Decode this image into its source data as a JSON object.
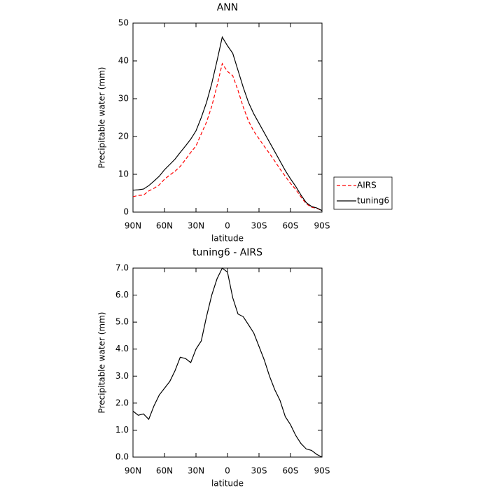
{
  "chart_data": [
    {
      "type": "line",
      "title": "ANN",
      "xlabel": "latitude",
      "ylabel": "Precipitable water (mm)",
      "x": [
        90,
        85,
        80,
        75,
        70,
        65,
        60,
        55,
        50,
        45,
        40,
        35,
        30,
        25,
        20,
        15,
        10,
        5,
        0,
        -5,
        -10,
        -15,
        -20,
        -25,
        -30,
        -35,
        -40,
        -45,
        -50,
        -55,
        -60,
        -65,
        -70,
        -75,
        -80,
        -85,
        -90
      ],
      "series": [
        {
          "name": "AIRS",
          "color": "#ff0000",
          "linestyle": "dashed",
          "values": [
            4.1,
            4.4,
            4.5,
            5.6,
            6.3,
            7.2,
            8.7,
            9.8,
            10.8,
            12.1,
            13.9,
            15.8,
            17.5,
            20.7,
            23.8,
            28.0,
            33.4,
            39.3,
            37.2,
            36.1,
            32.2,
            27.8,
            24.1,
            21.4,
            19.4,
            17.4,
            15.5,
            13.5,
            11.4,
            9.5,
            7.6,
            6.0,
            4.0,
            2.2,
            1.3,
            1.0,
            0.4
          ]
        },
        {
          "name": "tuning6",
          "color": "#000000",
          "linestyle": "solid",
          "values": [
            5.8,
            5.9,
            6.1,
            7.0,
            8.2,
            9.5,
            11.2,
            12.6,
            14.0,
            15.8,
            17.5,
            19.3,
            21.5,
            25.0,
            29.0,
            34.0,
            40.0,
            46.3,
            44.0,
            42.0,
            37.5,
            33.0,
            29.0,
            26.0,
            23.5,
            21.0,
            18.5,
            16.0,
            13.5,
            11.0,
            8.8,
            6.8,
            4.5,
            2.5,
            1.5,
            1.1,
            0.4
          ]
        }
      ],
      "xlim": [
        90,
        -90
      ],
      "xticks": [
        {
          "value": 90,
          "label": "90N"
        },
        {
          "value": 60,
          "label": "60N"
        },
        {
          "value": 30,
          "label": "30N"
        },
        0,
        {
          "value": -30,
          "label": "30S"
        },
        {
          "value": -60,
          "label": "60S"
        },
        {
          "value": -90,
          "label": "90S"
        }
      ],
      "ylim": [
        0,
        50
      ],
      "yticks": [
        0,
        10,
        20,
        30,
        40,
        50
      ],
      "legend": "right"
    },
    {
      "type": "line",
      "title": "tuning6 - AIRS",
      "xlabel": "latitude",
      "ylabel": "Precipitable water (mm)",
      "x": [
        90,
        85,
        80,
        75,
        70,
        65,
        60,
        55,
        50,
        45,
        40,
        35,
        30,
        25,
        20,
        15,
        10,
        5,
        0,
        -5,
        -10,
        -15,
        -20,
        -25,
        -30,
        -35,
        -40,
        -45,
        -50,
        -55,
        -60,
        -65,
        -70,
        -75,
        -80,
        -85,
        -90
      ],
      "color": "#000000",
      "values": [
        1.7,
        1.55,
        1.6,
        1.4,
        1.9,
        2.3,
        2.55,
        2.8,
        3.2,
        3.7,
        3.65,
        3.5,
        4.0,
        4.3,
        5.2,
        6.0,
        6.6,
        7.0,
        6.85,
        5.9,
        5.3,
        5.2,
        4.9,
        4.6,
        4.1,
        3.6,
        3.0,
        2.5,
        2.1,
        1.5,
        1.2,
        0.8,
        0.5,
        0.3,
        0.25,
        0.1,
        0.0
      ],
      "xlim": [
        90,
        -90
      ],
      "xticks": [
        {
          "value": 90,
          "label": "90N"
        },
        {
          "value": 60,
          "label": "60N"
        },
        {
          "value": 30,
          "label": "30N"
        },
        0,
        {
          "value": -30,
          "label": "30S"
        },
        {
          "value": -60,
          "label": "60S"
        },
        {
          "value": -90,
          "label": "90S"
        }
      ],
      "ylim": [
        0,
        7
      ],
      "yticks": [
        {
          "value": 0,
          "label": "0.0"
        },
        {
          "value": 1,
          "label": "1.0"
        },
        {
          "value": 2,
          "label": "2.0"
        },
        {
          "value": 3,
          "label": "3.0"
        },
        {
          "value": 4,
          "label": "4.0"
        },
        {
          "value": 5,
          "label": "5.0"
        },
        {
          "value": 6,
          "label": "6.0"
        },
        {
          "value": 7,
          "label": "7.0"
        }
      ]
    }
  ]
}
